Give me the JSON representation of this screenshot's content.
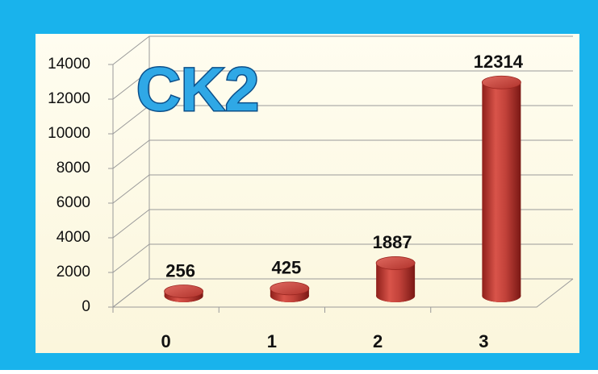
{
  "chart_data": {
    "type": "bar",
    "title": "CK2",
    "categories": [
      "0",
      "1",
      "2",
      "3"
    ],
    "values": [
      256,
      425,
      1887,
      12314
    ],
    "color": "#c0392b",
    "ylim": [
      0,
      14000
    ],
    "yticks": [
      0,
      2000,
      4000,
      6000,
      8000,
      10000,
      12000,
      14000
    ],
    "grid": true
  }
}
